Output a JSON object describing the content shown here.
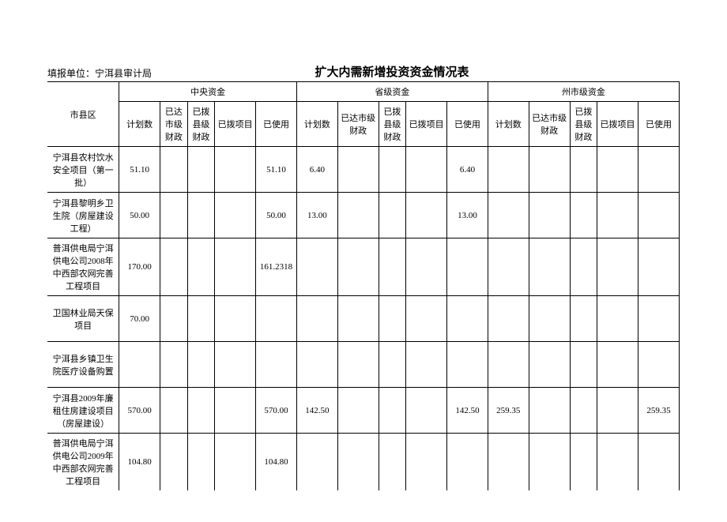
{
  "meta": {
    "reporting_unit_label": "填报单位：宁洱县审计局",
    "title": "扩大内需新增投资资金情况表"
  },
  "table": {
    "row_header": "市县区",
    "groups": {
      "central": "中央资金",
      "province": "省级资金",
      "prefecture": "州市级资金"
    },
    "cols": {
      "plan": "计划数",
      "city_fin": "已达市级财政",
      "county_fin": "已拨县级财政",
      "project": "已拨项目",
      "used": "已使用",
      "city_fin2": "已达市级财政",
      "county_fin2": "已拨县级财政"
    },
    "rows": [
      {
        "name": "宁洱县农村饮水安全项目（第一批）",
        "c_plan": "51.10",
        "c_used": "51.10",
        "p_plan": "6.40",
        "p_used": "6.40"
      },
      {
        "name": "宁洱县黎明乡卫生院（房屋建设工程）",
        "c_plan": "50.00",
        "c_used": "50.00",
        "p_plan": "13.00",
        "p_used": "13.00"
      },
      {
        "name": "普洱供电局宁洱供电公司2008年中西部农网完善工程项目",
        "c_plan": "170.00",
        "c_used": "161.2318"
      },
      {
        "name": "卫国林业局天保项目",
        "c_plan": "70.00"
      },
      {
        "name": "宁洱县乡镇卫生院医疗设备购置"
      },
      {
        "name": "宁洱县2009年廉租住房建设项目（房屋建设）",
        "c_plan": "570.00",
        "c_used": "570.00",
        "p_plan": "142.50",
        "p_used": "142.50",
        "s_plan": "259.35",
        "s_used": "259.35"
      },
      {
        "name": "普洱供电局宁洱供电公司2009年中西部农网完善工程项目",
        "c_plan": "104.80",
        "c_used": "104.80"
      }
    ]
  },
  "style": {
    "background_color": "#ffffff",
    "border_color": "#000000",
    "font_family": "SimSun",
    "header_fontsize": 11,
    "cell_fontsize": 11,
    "title_fontsize": 15
  }
}
